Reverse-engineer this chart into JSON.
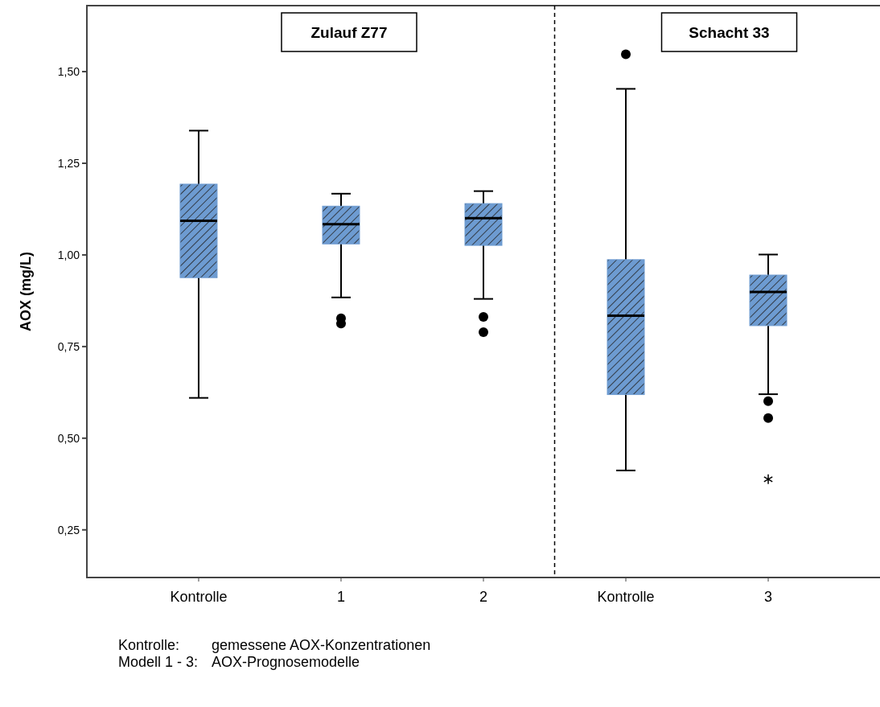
{
  "chart_data": {
    "type": "box",
    "ylabel": "AOX (mg/L)",
    "categories": [
      "Kontrolle",
      "1",
      "2",
      "Kontrolle",
      "3"
    ],
    "color": "#6d9bd1",
    "boxes": [
      {
        "low": 0.61,
        "q1": 0.938,
        "median": 1.093,
        "q3": 1.193,
        "high": 1.339
      },
      {
        "low": 0.884,
        "q1": 1.03,
        "median": 1.084,
        "q3": 1.133,
        "high": 1.167,
        "outliers": [
          0.827,
          0.813
        ]
      },
      {
        "low": 0.88,
        "q1": 1.026,
        "median": 1.1,
        "q3": 1.14,
        "high": 1.174,
        "outliers": [
          0.831,
          0.789
        ]
      },
      {
        "low": 0.412,
        "q1": 0.619,
        "median": 0.834,
        "q3": 0.987,
        "high": 1.453,
        "outliers": [
          1.547
        ]
      },
      {
        "low": 0.62,
        "q1": 0.807,
        "median": 0.899,
        "q3": 0.945,
        "high": 1.001,
        "outliers": [
          0.601,
          0.555,
          0.388
        ]
      }
    ],
    "ylim": [
      0.12,
      1.68
    ],
    "yticks": [
      {
        "value": 0.25,
        "label": "0,25"
      },
      {
        "value": 0.5,
        "label": "0,50"
      },
      {
        "value": 0.75,
        "label": "0,75"
      },
      {
        "value": 1.0,
        "label": "1,00"
      },
      {
        "value": 1.25,
        "label": "1,25"
      },
      {
        "value": 1.5,
        "label": "1,50"
      }
    ],
    "annotations": [
      "Zulauf Z77",
      "Schacht 33",
      "Kontrolle: gemessene AOX-Konzentrationen",
      "Modell 1 - 3: AOX-Prognosemodelle"
    ],
    "grid": false
  }
}
